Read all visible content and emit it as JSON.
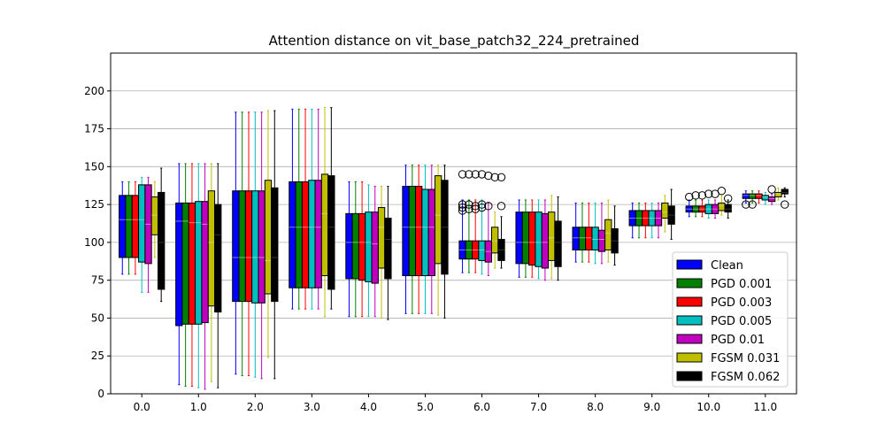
{
  "chart_data": {
    "type": "boxplot",
    "title": "Attention distance on vit_base_patch32_224_pretrained",
    "xlabel": "",
    "ylabel": "",
    "ylim": [
      0,
      225
    ],
    "xlim": [
      -0.55,
      11.55
    ],
    "yticks": [
      0,
      25,
      50,
      75,
      100,
      125,
      150,
      175,
      200
    ],
    "categories": [
      "0.0",
      "1.0",
      "2.0",
      "3.0",
      "4.0",
      "5.0",
      "6.0",
      "7.0",
      "8.0",
      "9.0",
      "10.0",
      "11.0"
    ],
    "grid": "y",
    "legend_position": "lower-right",
    "series": [
      {
        "name": "Clean",
        "color": "#0000ff",
        "boxes": [
          {
            "wlo": 79,
            "q1": 90,
            "med": 115,
            "q3": 131,
            "whi": 140,
            "fl": []
          },
          {
            "wlo": 6,
            "q1": 45,
            "med": 114,
            "q3": 126,
            "whi": 152,
            "fl": []
          },
          {
            "wlo": 13,
            "q1": 61,
            "med": 90,
            "q3": 134,
            "whi": 186,
            "fl": []
          },
          {
            "wlo": 56,
            "q1": 70,
            "med": 110,
            "q3": 140,
            "whi": 188,
            "fl": []
          },
          {
            "wlo": 51,
            "q1": 76,
            "med": 100,
            "q3": 119,
            "whi": 140,
            "fl": []
          },
          {
            "wlo": 53,
            "q1": 78,
            "med": 110,
            "q3": 137,
            "whi": 151,
            "fl": []
          },
          {
            "wlo": 80,
            "q1": 89,
            "med": 95,
            "q3": 101,
            "whi": 128,
            "fl": [
              145,
              125,
              123,
              121
            ]
          },
          {
            "wlo": 77,
            "q1": 86,
            "med": 100,
            "q3": 120,
            "whi": 128,
            "fl": []
          },
          {
            "wlo": 87,
            "q1": 95,
            "med": 103,
            "q3": 110,
            "whi": 126,
            "fl": []
          },
          {
            "wlo": 103,
            "q1": 111,
            "med": 116,
            "q3": 121,
            "whi": 126,
            "fl": []
          },
          {
            "wlo": 117,
            "q1": 120,
            "med": 122,
            "q3": 124,
            "whi": 128,
            "fl": [
              130
            ]
          },
          {
            "wlo": 126,
            "q1": 129,
            "med": 131,
            "q3": 132,
            "whi": 134,
            "fl": [
              125
            ]
          }
        ]
      },
      {
        "name": "PGD 0.001",
        "color": "#008000",
        "boxes": [
          {
            "wlo": 79,
            "q1": 90,
            "med": 115,
            "q3": 131,
            "whi": 140,
            "fl": []
          },
          {
            "wlo": 5,
            "q1": 46,
            "med": 114,
            "q3": 126,
            "whi": 152,
            "fl": []
          },
          {
            "wlo": 12,
            "q1": 61,
            "med": 90,
            "q3": 134,
            "whi": 186,
            "fl": []
          },
          {
            "wlo": 56,
            "q1": 70,
            "med": 110,
            "q3": 140,
            "whi": 188,
            "fl": []
          },
          {
            "wlo": 51,
            "q1": 76,
            "med": 100,
            "q3": 119,
            "whi": 140,
            "fl": []
          },
          {
            "wlo": 53,
            "q1": 78,
            "med": 110,
            "q3": 137,
            "whi": 151,
            "fl": []
          },
          {
            "wlo": 80,
            "q1": 89,
            "med": 95,
            "q3": 101,
            "whi": 128,
            "fl": [
              145,
              125,
              122
            ]
          },
          {
            "wlo": 77,
            "q1": 86,
            "med": 100,
            "q3": 120,
            "whi": 128,
            "fl": []
          },
          {
            "wlo": 87,
            "q1": 95,
            "med": 103,
            "q3": 110,
            "whi": 126,
            "fl": []
          },
          {
            "wlo": 103,
            "q1": 111,
            "med": 116,
            "q3": 121,
            "whi": 126,
            "fl": []
          },
          {
            "wlo": 117,
            "q1": 120,
            "med": 122,
            "q3": 124,
            "whi": 128,
            "fl": [
              131
            ]
          },
          {
            "wlo": 126,
            "q1": 129,
            "med": 131,
            "q3": 132,
            "whi": 134,
            "fl": [
              125
            ]
          }
        ]
      },
      {
        "name": "PGD 0.003",
        "color": "#ff0000",
        "boxes": [
          {
            "wlo": 79,
            "q1": 90,
            "med": 115,
            "q3": 131,
            "whi": 140,
            "fl": []
          },
          {
            "wlo": 5,
            "q1": 46,
            "med": 113,
            "q3": 126,
            "whi": 152,
            "fl": []
          },
          {
            "wlo": 12,
            "q1": 61,
            "med": 90,
            "q3": 134,
            "whi": 186,
            "fl": []
          },
          {
            "wlo": 56,
            "q1": 70,
            "med": 110,
            "q3": 140,
            "whi": 188,
            "fl": []
          },
          {
            "wlo": 51,
            "q1": 75,
            "med": 100,
            "q3": 119,
            "whi": 140,
            "fl": []
          },
          {
            "wlo": 53,
            "q1": 78,
            "med": 110,
            "q3": 137,
            "whi": 151,
            "fl": []
          },
          {
            "wlo": 80,
            "q1": 89,
            "med": 95,
            "q3": 101,
            "whi": 128,
            "fl": [
              145,
              124,
              122
            ]
          },
          {
            "wlo": 77,
            "q1": 85,
            "med": 100,
            "q3": 120,
            "whi": 128,
            "fl": []
          },
          {
            "wlo": 87,
            "q1": 95,
            "med": 103,
            "q3": 110,
            "whi": 126,
            "fl": []
          },
          {
            "wlo": 103,
            "q1": 111,
            "med": 116,
            "q3": 121,
            "whi": 126,
            "fl": []
          },
          {
            "wlo": 117,
            "q1": 120,
            "med": 122,
            "q3": 124,
            "whi": 128,
            "fl": [
              131
            ]
          },
          {
            "wlo": 126,
            "q1": 129,
            "med": 131,
            "q3": 132,
            "whi": 134,
            "fl": []
          }
        ]
      },
      {
        "name": "PGD 0.005",
        "color": "#00bfbf",
        "boxes": [
          {
            "wlo": 67,
            "q1": 87,
            "med": 115,
            "q3": 138,
            "whi": 143,
            "fl": []
          },
          {
            "wlo": 4,
            "q1": 46,
            "med": 113,
            "q3": 127,
            "whi": 152,
            "fl": []
          },
          {
            "wlo": 11,
            "q1": 60,
            "med": 90,
            "q3": 134,
            "whi": 186,
            "fl": []
          },
          {
            "wlo": 56,
            "q1": 70,
            "med": 110,
            "q3": 141,
            "whi": 188,
            "fl": []
          },
          {
            "wlo": 51,
            "q1": 74,
            "med": 100,
            "q3": 120,
            "whi": 138,
            "fl": []
          },
          {
            "wlo": 53,
            "q1": 78,
            "med": 110,
            "q3": 135,
            "whi": 151,
            "fl": []
          },
          {
            "wlo": 79,
            "q1": 88,
            "med": 95,
            "q3": 101,
            "whi": 128,
            "fl": [
              145,
              125,
              123
            ]
          },
          {
            "wlo": 76,
            "q1": 84,
            "med": 100,
            "q3": 120,
            "whi": 128,
            "fl": []
          },
          {
            "wlo": 86,
            "q1": 95,
            "med": 102,
            "q3": 110,
            "whi": 126,
            "fl": []
          },
          {
            "wlo": 103,
            "q1": 111,
            "med": 116,
            "q3": 121,
            "whi": 126,
            "fl": []
          },
          {
            "wlo": 116,
            "q1": 119,
            "med": 122,
            "q3": 125,
            "whi": 128,
            "fl": [
              132
            ]
          },
          {
            "wlo": 125,
            "q1": 128,
            "med": 130,
            "q3": 131,
            "whi": 133,
            "fl": []
          }
        ]
      },
      {
        "name": "PGD 0.01",
        "color": "#bf00bf",
        "boxes": [
          {
            "wlo": 67,
            "q1": 86,
            "med": 112,
            "q3": 138,
            "whi": 143,
            "fl": []
          },
          {
            "wlo": 3,
            "q1": 47,
            "med": 112,
            "q3": 127,
            "whi": 152,
            "fl": []
          },
          {
            "wlo": 10,
            "q1": 60,
            "med": 90,
            "q3": 134,
            "whi": 186,
            "fl": []
          },
          {
            "wlo": 56,
            "q1": 70,
            "med": 110,
            "q3": 141,
            "whi": 188,
            "fl": []
          },
          {
            "wlo": 51,
            "q1": 73,
            "med": 99,
            "q3": 120,
            "whi": 137,
            "fl": []
          },
          {
            "wlo": 53,
            "q1": 78,
            "med": 110,
            "q3": 135,
            "whi": 151,
            "fl": []
          },
          {
            "wlo": 78,
            "q1": 87,
            "med": 94,
            "q3": 101,
            "whi": 126,
            "fl": [
              144,
              124
            ]
          },
          {
            "wlo": 75,
            "q1": 83,
            "med": 100,
            "q3": 119,
            "whi": 128,
            "fl": []
          },
          {
            "wlo": 86,
            "q1": 94,
            "med": 102,
            "q3": 108,
            "whi": 126,
            "fl": []
          },
          {
            "wlo": 103,
            "q1": 111,
            "med": 116,
            "q3": 121,
            "whi": 126,
            "fl": []
          },
          {
            "wlo": 116,
            "q1": 119,
            "med": 122,
            "q3": 125,
            "whi": 128,
            "fl": [
              132
            ]
          },
          {
            "wlo": 125,
            "q1": 127,
            "med": 129,
            "q3": 130,
            "whi": 132,
            "fl": [
              135
            ]
          }
        ]
      },
      {
        "name": "FGSM 0.031",
        "color": "#bfbf00",
        "boxes": [
          {
            "wlo": 90,
            "q1": 105,
            "med": 118,
            "q3": 130,
            "whi": 140,
            "fl": []
          },
          {
            "wlo": 8,
            "q1": 58,
            "med": 100,
            "q3": 134,
            "whi": 152,
            "fl": []
          },
          {
            "wlo": 24,
            "q1": 66,
            "med": 88,
            "q3": 141,
            "whi": 187,
            "fl": []
          },
          {
            "wlo": 51,
            "q1": 78,
            "med": 119,
            "q3": 145,
            "whi": 189,
            "fl": []
          },
          {
            "wlo": 50,
            "q1": 83,
            "med": 110,
            "q3": 123,
            "whi": 137,
            "fl": []
          },
          {
            "wlo": 52,
            "q1": 86,
            "med": 118,
            "q3": 144,
            "whi": 151,
            "fl": []
          },
          {
            "wlo": 83,
            "q1": 93,
            "med": 101,
            "q3": 110,
            "whi": 120,
            "fl": [
              143
            ]
          },
          {
            "wlo": 76,
            "q1": 88,
            "med": 103,
            "q3": 120,
            "whi": 131,
            "fl": []
          },
          {
            "wlo": 87,
            "q1": 95,
            "med": 106,
            "q3": 115,
            "whi": 128,
            "fl": []
          },
          {
            "wlo": 107,
            "q1": 116,
            "med": 120,
            "q3": 126,
            "whi": 131,
            "fl": []
          },
          {
            "wlo": 118,
            "q1": 121,
            "med": 124,
            "q3": 126,
            "whi": 131,
            "fl": [
              134
            ]
          },
          {
            "wlo": 128,
            "q1": 130,
            "med": 132,
            "q3": 133,
            "whi": 136,
            "fl": []
          }
        ]
      },
      {
        "name": "FGSM 0.062",
        "color": "#000000",
        "boxes": [
          {
            "wlo": 61,
            "q1": 69,
            "med": 100,
            "q3": 133,
            "whi": 149,
            "fl": []
          },
          {
            "wlo": 4,
            "q1": 54,
            "med": 105,
            "q3": 125,
            "whi": 152,
            "fl": []
          },
          {
            "wlo": 10,
            "q1": 61,
            "med": 90,
            "q3": 136,
            "whi": 187,
            "fl": []
          },
          {
            "wlo": 56,
            "q1": 69,
            "med": 110,
            "q3": 144,
            "whi": 189,
            "fl": []
          },
          {
            "wlo": 49,
            "q1": 76,
            "med": 102,
            "q3": 116,
            "whi": 137,
            "fl": []
          },
          {
            "wlo": 50,
            "q1": 79,
            "med": 110,
            "q3": 141,
            "whi": 151,
            "fl": []
          },
          {
            "wlo": 83,
            "q1": 88,
            "med": 95,
            "q3": 102,
            "whi": 117,
            "fl": [
              124,
              143
            ]
          },
          {
            "wlo": 75,
            "q1": 84,
            "med": 100,
            "q3": 114,
            "whi": 130,
            "fl": []
          },
          {
            "wlo": 85,
            "q1": 93,
            "med": 101,
            "q3": 109,
            "whi": 124,
            "fl": []
          },
          {
            "wlo": 102,
            "q1": 112,
            "med": 118,
            "q3": 124,
            "whi": 135,
            "fl": []
          },
          {
            "wlo": 116,
            "q1": 120,
            "med": 122,
            "q3": 125,
            "whi": 128,
            "fl": [
              129
            ]
          },
          {
            "wlo": 130,
            "q1": 132,
            "med": 133,
            "q3": 135,
            "whi": 136,
            "fl": [
              125
            ]
          }
        ]
      }
    ]
  }
}
